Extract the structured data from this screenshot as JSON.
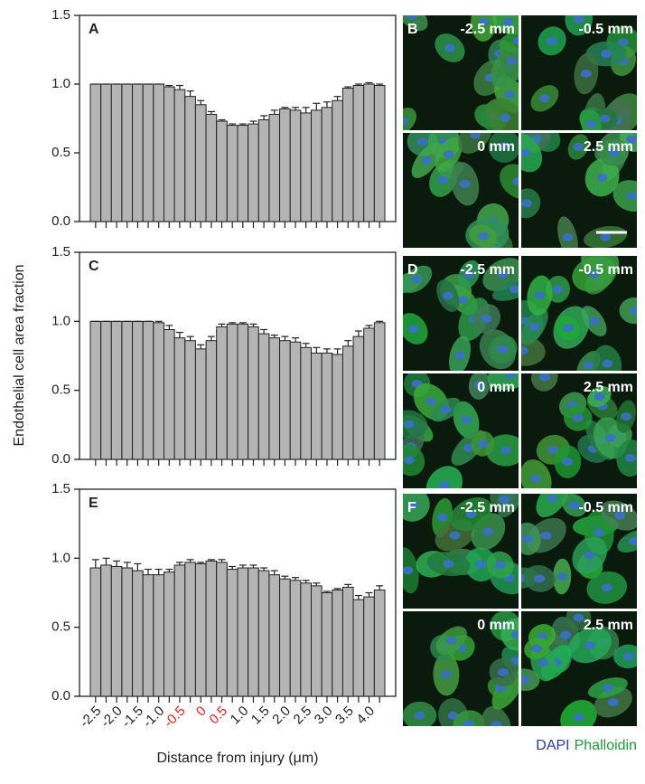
{
  "y_label": "Endothelial cell area fraction",
  "x_label": "Distance from injury (μm)",
  "chart_data": [
    {
      "type": "bar",
      "panel": "A",
      "color": "#b4b4b4",
      "ylim": [
        0,
        1.5
      ],
      "yticks": [
        {
          "value": 0,
          "label": "0.0"
        },
        {
          "value": 0.5,
          "label": "0.5"
        },
        {
          "value": 1,
          "label": "1.0"
        },
        {
          "value": 1.5,
          "label": "1.5"
        }
      ],
      "values": [
        1,
        1,
        1,
        1,
        1,
        1,
        1,
        0.98,
        0.96,
        0.91,
        0.85,
        0.78,
        0.73,
        0.7,
        0.7,
        0.71,
        0.74,
        0.78,
        0.82,
        0.81,
        0.79,
        0.81,
        0.83,
        0.88,
        0.97,
        0.99,
        1,
        0.99
      ],
      "errors": [
        0,
        0,
        0,
        0,
        0,
        0,
        0,
        0.01,
        0.03,
        0.04,
        0.03,
        0.02,
        0.01,
        0.01,
        0.01,
        0.02,
        0.03,
        0.03,
        0.01,
        0.02,
        0.04,
        0.05,
        0.04,
        0.03,
        0.01,
        0.01,
        0.01,
        0.01
      ]
    },
    {
      "type": "bar",
      "panel": "C",
      "color": "#b4b4b4",
      "ylim": [
        0,
        1.5
      ],
      "yticks": [
        {
          "value": 0,
          "label": "0.0"
        },
        {
          "value": 0.5,
          "label": "0.5"
        },
        {
          "value": 1,
          "label": "1.0"
        },
        {
          "value": 1.5,
          "label": "1.5"
        }
      ],
      "values": [
        1,
        1,
        1,
        1,
        1,
        1,
        0.99,
        0.94,
        0.88,
        0.86,
        0.8,
        0.86,
        0.96,
        0.98,
        0.98,
        0.96,
        0.91,
        0.88,
        0.86,
        0.85,
        0.81,
        0.77,
        0.77,
        0.76,
        0.82,
        0.89,
        0.95,
        0.99
      ],
      "errors": [
        0,
        0,
        0,
        0,
        0,
        0,
        0.01,
        0.03,
        0.04,
        0.03,
        0.03,
        0.03,
        0.02,
        0.01,
        0.01,
        0.02,
        0.03,
        0.02,
        0.03,
        0.03,
        0.03,
        0.04,
        0.03,
        0.04,
        0.04,
        0.04,
        0.02,
        0.01
      ]
    },
    {
      "type": "bar",
      "panel": "E",
      "color": "#b4b4b4",
      "ylim": [
        0,
        1.5
      ],
      "yticks": [
        {
          "value": 0,
          "label": "0.0"
        },
        {
          "value": 0.5,
          "label": "0.5"
        },
        {
          "value": 1,
          "label": "1.0"
        },
        {
          "value": 1.5,
          "label": "1.5"
        }
      ],
      "categories": [
        "-2.5",
        null,
        "-2.0",
        null,
        "-1.5",
        null,
        "-1.0",
        null,
        "-0.5",
        null,
        "0",
        null,
        "0.5",
        null,
        "1.0",
        null,
        "1.5",
        null,
        "2.0",
        null,
        "2.5",
        null,
        "3.0",
        null,
        "3.5",
        null,
        "4.0",
        null
      ],
      "highlight_labels": [
        "-0.5",
        "0",
        "0.5"
      ],
      "highlight_color": "#e0201b",
      "values": [
        0.93,
        0.95,
        0.94,
        0.93,
        0.91,
        0.88,
        0.88,
        0.9,
        0.95,
        0.97,
        0.96,
        0.98,
        0.97,
        0.92,
        0.93,
        0.93,
        0.91,
        0.88,
        0.85,
        0.84,
        0.82,
        0.8,
        0.75,
        0.77,
        0.79,
        0.7,
        0.72,
        0.77
      ],
      "errors": [
        0.06,
        0.05,
        0.04,
        0.04,
        0.05,
        0.04,
        0.04,
        0.02,
        0.02,
        0.02,
        0.01,
        0.01,
        0.02,
        0.02,
        0.02,
        0.02,
        0.02,
        0.03,
        0.02,
        0.02,
        0.02,
        0.02,
        0.01,
        0.01,
        0.02,
        0.03,
        0.03,
        0.03
      ]
    }
  ],
  "images": [
    {
      "panel": "B",
      "labels": [
        "-2.5 mm",
        "-0.5 mm",
        "0 mm",
        "2.5 mm"
      ]
    },
    {
      "panel": "D",
      "labels": [
        "-2.5 mm",
        "-0.5 mm",
        "0 mm",
        "2.5 mm"
      ]
    },
    {
      "panel": "F",
      "labels": [
        "-2.5 mm",
        "-0.5 mm",
        "0 mm",
        "2.5 mm"
      ]
    }
  ],
  "legend": [
    {
      "name": "DAPI",
      "color": "#2a3a9a"
    },
    {
      "name": "Phalloidin",
      "color": "#1f9a3a"
    }
  ]
}
